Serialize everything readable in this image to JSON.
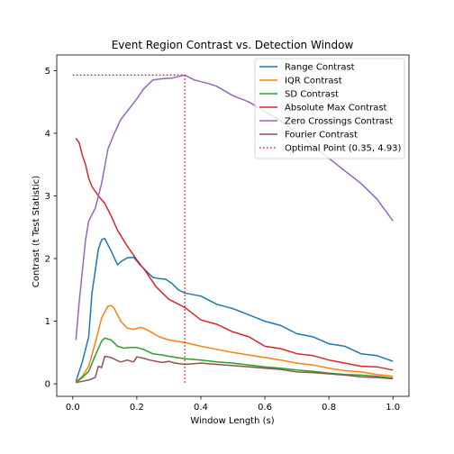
{
  "chart_data": {
    "type": "line",
    "title": "Event Region Contrast vs. Detection Window",
    "xlabel": "Window Length (s)",
    "ylabel": "Contrast (t Test Statistic)",
    "xlim": [
      -0.05,
      1.05
    ],
    "ylim": [
      -0.2,
      5.25
    ],
    "xticks": [
      0.0,
      0.2,
      0.4,
      0.6,
      0.8,
      1.0
    ],
    "xtick_labels": [
      "0.0",
      "0.2",
      "0.4",
      "0.6",
      "0.8",
      "1.0"
    ],
    "yticks": [
      0,
      1,
      2,
      3,
      4,
      5
    ],
    "ytick_labels": [
      "0",
      "1",
      "2",
      "3",
      "4",
      "5"
    ],
    "grid": false,
    "legend_position": "top-right",
    "series": [
      {
        "name": "Range Contrast",
        "color": "#1f77b4",
        "x": [
          0.01,
          0.03,
          0.05,
          0.06,
          0.07,
          0.08,
          0.09,
          0.1,
          0.12,
          0.14,
          0.15,
          0.17,
          0.19,
          0.21,
          0.23,
          0.25,
          0.27,
          0.29,
          0.31,
          0.33,
          0.35,
          0.4,
          0.45,
          0.5,
          0.55,
          0.6,
          0.65,
          0.7,
          0.75,
          0.8,
          0.85,
          0.9,
          0.95,
          1.0
        ],
        "y": [
          0.04,
          0.35,
          0.75,
          1.45,
          1.8,
          2.15,
          2.3,
          2.32,
          2.12,
          1.9,
          1.95,
          2.01,
          2.02,
          1.9,
          1.8,
          1.7,
          1.68,
          1.67,
          1.6,
          1.5,
          1.45,
          1.4,
          1.27,
          1.2,
          1.1,
          1.0,
          0.93,
          0.8,
          0.75,
          0.64,
          0.6,
          0.48,
          0.45,
          0.36
        ]
      },
      {
        "name": "IQR Contrast",
        "color": "#ff7f0e",
        "x": [
          0.01,
          0.03,
          0.05,
          0.07,
          0.09,
          0.11,
          0.12,
          0.13,
          0.15,
          0.17,
          0.19,
          0.21,
          0.22,
          0.24,
          0.27,
          0.3,
          0.35,
          0.4,
          0.45,
          0.5,
          0.55,
          0.6,
          0.65,
          0.7,
          0.75,
          0.8,
          0.85,
          0.9,
          0.95,
          1.0
        ],
        "y": [
          0.03,
          0.12,
          0.28,
          0.65,
          1.05,
          1.24,
          1.25,
          1.2,
          1.0,
          0.89,
          0.87,
          0.9,
          0.89,
          0.84,
          0.75,
          0.7,
          0.66,
          0.6,
          0.55,
          0.5,
          0.46,
          0.42,
          0.38,
          0.33,
          0.3,
          0.25,
          0.21,
          0.19,
          0.15,
          0.12
        ]
      },
      {
        "name": "SD Contrast",
        "color": "#2ca02c",
        "x": [
          0.01,
          0.03,
          0.05,
          0.07,
          0.09,
          0.1,
          0.12,
          0.14,
          0.16,
          0.18,
          0.2,
          0.22,
          0.25,
          0.28,
          0.3,
          0.35,
          0.4,
          0.45,
          0.5,
          0.55,
          0.6,
          0.65,
          0.7,
          0.75,
          0.8,
          0.85,
          0.9,
          0.95,
          1.0
        ],
        "y": [
          0.02,
          0.1,
          0.2,
          0.45,
          0.68,
          0.73,
          0.7,
          0.6,
          0.57,
          0.58,
          0.58,
          0.55,
          0.48,
          0.46,
          0.44,
          0.4,
          0.38,
          0.35,
          0.33,
          0.3,
          0.27,
          0.25,
          0.22,
          0.2,
          0.17,
          0.15,
          0.14,
          0.12,
          0.09
        ]
      },
      {
        "name": "Absolute Max Contrast",
        "color": "#d62728",
        "x": [
          0.01,
          0.02,
          0.03,
          0.04,
          0.05,
          0.06,
          0.08,
          0.1,
          0.12,
          0.14,
          0.17,
          0.2,
          0.23,
          0.26,
          0.3,
          0.35,
          0.4,
          0.45,
          0.5,
          0.55,
          0.6,
          0.65,
          0.7,
          0.75,
          0.8,
          0.85,
          0.9,
          0.95,
          1.0
        ],
        "y": [
          3.92,
          3.85,
          3.65,
          3.5,
          3.28,
          3.15,
          3.0,
          2.88,
          2.68,
          2.45,
          2.2,
          1.98,
          1.78,
          1.55,
          1.35,
          1.22,
          1.02,
          0.95,
          0.83,
          0.75,
          0.6,
          0.56,
          0.48,
          0.45,
          0.38,
          0.33,
          0.28,
          0.27,
          0.22
        ]
      },
      {
        "name": "Zero Crossings Contrast",
        "color": "#9467bd",
        "x": [
          0.01,
          0.02,
          0.03,
          0.04,
          0.05,
          0.07,
          0.09,
          0.11,
          0.13,
          0.15,
          0.17,
          0.2,
          0.22,
          0.25,
          0.28,
          0.31,
          0.35,
          0.38,
          0.42,
          0.45,
          0.5,
          0.55,
          0.6,
          0.65,
          0.7,
          0.75,
          0.8,
          0.85,
          0.9,
          0.95,
          1.0
        ],
        "y": [
          0.7,
          1.3,
          1.8,
          2.3,
          2.6,
          2.8,
          3.2,
          3.75,
          4.0,
          4.22,
          4.35,
          4.55,
          4.7,
          4.85,
          4.87,
          4.88,
          4.93,
          4.85,
          4.8,
          4.75,
          4.6,
          4.5,
          4.35,
          4.2,
          4.0,
          3.8,
          3.6,
          3.4,
          3.2,
          2.95,
          2.6
        ]
      },
      {
        "name": "Fourier Contrast",
        "color": "#8c564b",
        "x": [
          0.01,
          0.03,
          0.05,
          0.07,
          0.08,
          0.09,
          0.1,
          0.12,
          0.14,
          0.15,
          0.17,
          0.19,
          0.2,
          0.22,
          0.24,
          0.26,
          0.28,
          0.3,
          0.32,
          0.35,
          0.4,
          0.45,
          0.5,
          0.55,
          0.6,
          0.65,
          0.7,
          0.75,
          0.8,
          0.85,
          0.9,
          0.95,
          1.0
        ],
        "y": [
          0.02,
          0.04,
          0.06,
          0.1,
          0.28,
          0.26,
          0.44,
          0.42,
          0.37,
          0.35,
          0.38,
          0.35,
          0.43,
          0.41,
          0.38,
          0.36,
          0.34,
          0.36,
          0.33,
          0.31,
          0.33,
          0.31,
          0.29,
          0.27,
          0.25,
          0.23,
          0.19,
          0.18,
          0.16,
          0.14,
          0.11,
          0.1,
          0.08
        ]
      }
    ],
    "optimal_point": {
      "name": "Optimal Point (0.35, 4.93)",
      "color": "#d62728",
      "x": 0.35,
      "y": 4.93,
      "x_start": 0.0
    }
  }
}
